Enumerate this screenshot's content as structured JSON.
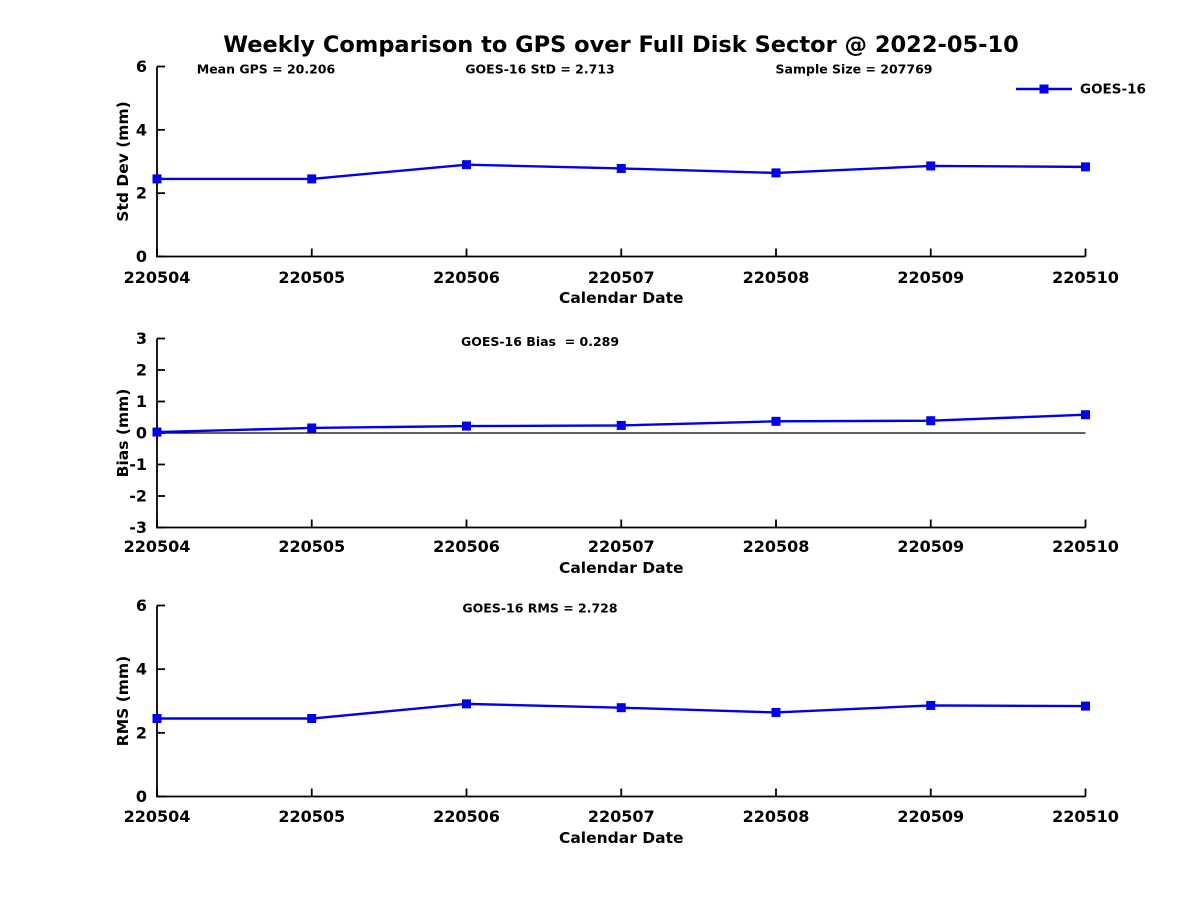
{
  "title": "Weekly Comparison to GPS over Full Disk Sector @ 2022-05-10",
  "accent_color": "#0000ee",
  "chart_data": [
    {
      "id": "std-dev",
      "type": "line",
      "categories": [
        "220504",
        "220505",
        "220506",
        "220507",
        "220508",
        "220509",
        "220510"
      ],
      "series": [
        {
          "name": "GOES-16",
          "color": "#0000ee",
          "marker": "square",
          "values": [
            2.45,
            2.45,
            2.9,
            2.78,
            2.64,
            2.86,
            2.83
          ]
        }
      ],
      "xlabel": "Calendar Date",
      "ylabel": "Std Dev (mm)",
      "ylim": [
        0,
        6
      ],
      "yticks": [
        0,
        2,
        4,
        6
      ],
      "annotations": [
        "Mean GPS = 20.206",
        "GOES-16 StD = 2.713",
        "Sample Size = 207769"
      ],
      "legend": {
        "label": "GOES-16",
        "position": "top-right"
      },
      "grid": false
    },
    {
      "id": "bias",
      "type": "line",
      "categories": [
        "220504",
        "220505",
        "220506",
        "220507",
        "220508",
        "220509",
        "220510"
      ],
      "series": [
        {
          "name": "GOES-16",
          "color": "#0000ee",
          "marker": "square",
          "values": [
            0.03,
            0.16,
            0.22,
            0.24,
            0.37,
            0.39,
            0.58
          ]
        }
      ],
      "xlabel": "Calendar Date",
      "ylabel": "Bias (mm)",
      "ylim": [
        -3,
        3
      ],
      "yticks": [
        -3,
        -2,
        -1,
        0,
        1,
        2,
        3
      ],
      "annotations": [
        "GOES-16 Bias  = 0.289"
      ],
      "zero_line": true,
      "grid": false
    },
    {
      "id": "rms",
      "type": "line",
      "categories": [
        "220504",
        "220505",
        "220506",
        "220507",
        "220508",
        "220509",
        "220510"
      ],
      "series": [
        {
          "name": "GOES-16",
          "color": "#0000ee",
          "marker": "square",
          "values": [
            2.45,
            2.45,
            2.91,
            2.79,
            2.64,
            2.86,
            2.84
          ]
        }
      ],
      "xlabel": "Calendar Date",
      "ylabel": "RMS (mm)",
      "ylim": [
        0,
        6
      ],
      "yticks": [
        0,
        2,
        4,
        6
      ],
      "annotations": [
        "GOES-16 RMS = 2.728"
      ],
      "grid": false
    }
  ]
}
